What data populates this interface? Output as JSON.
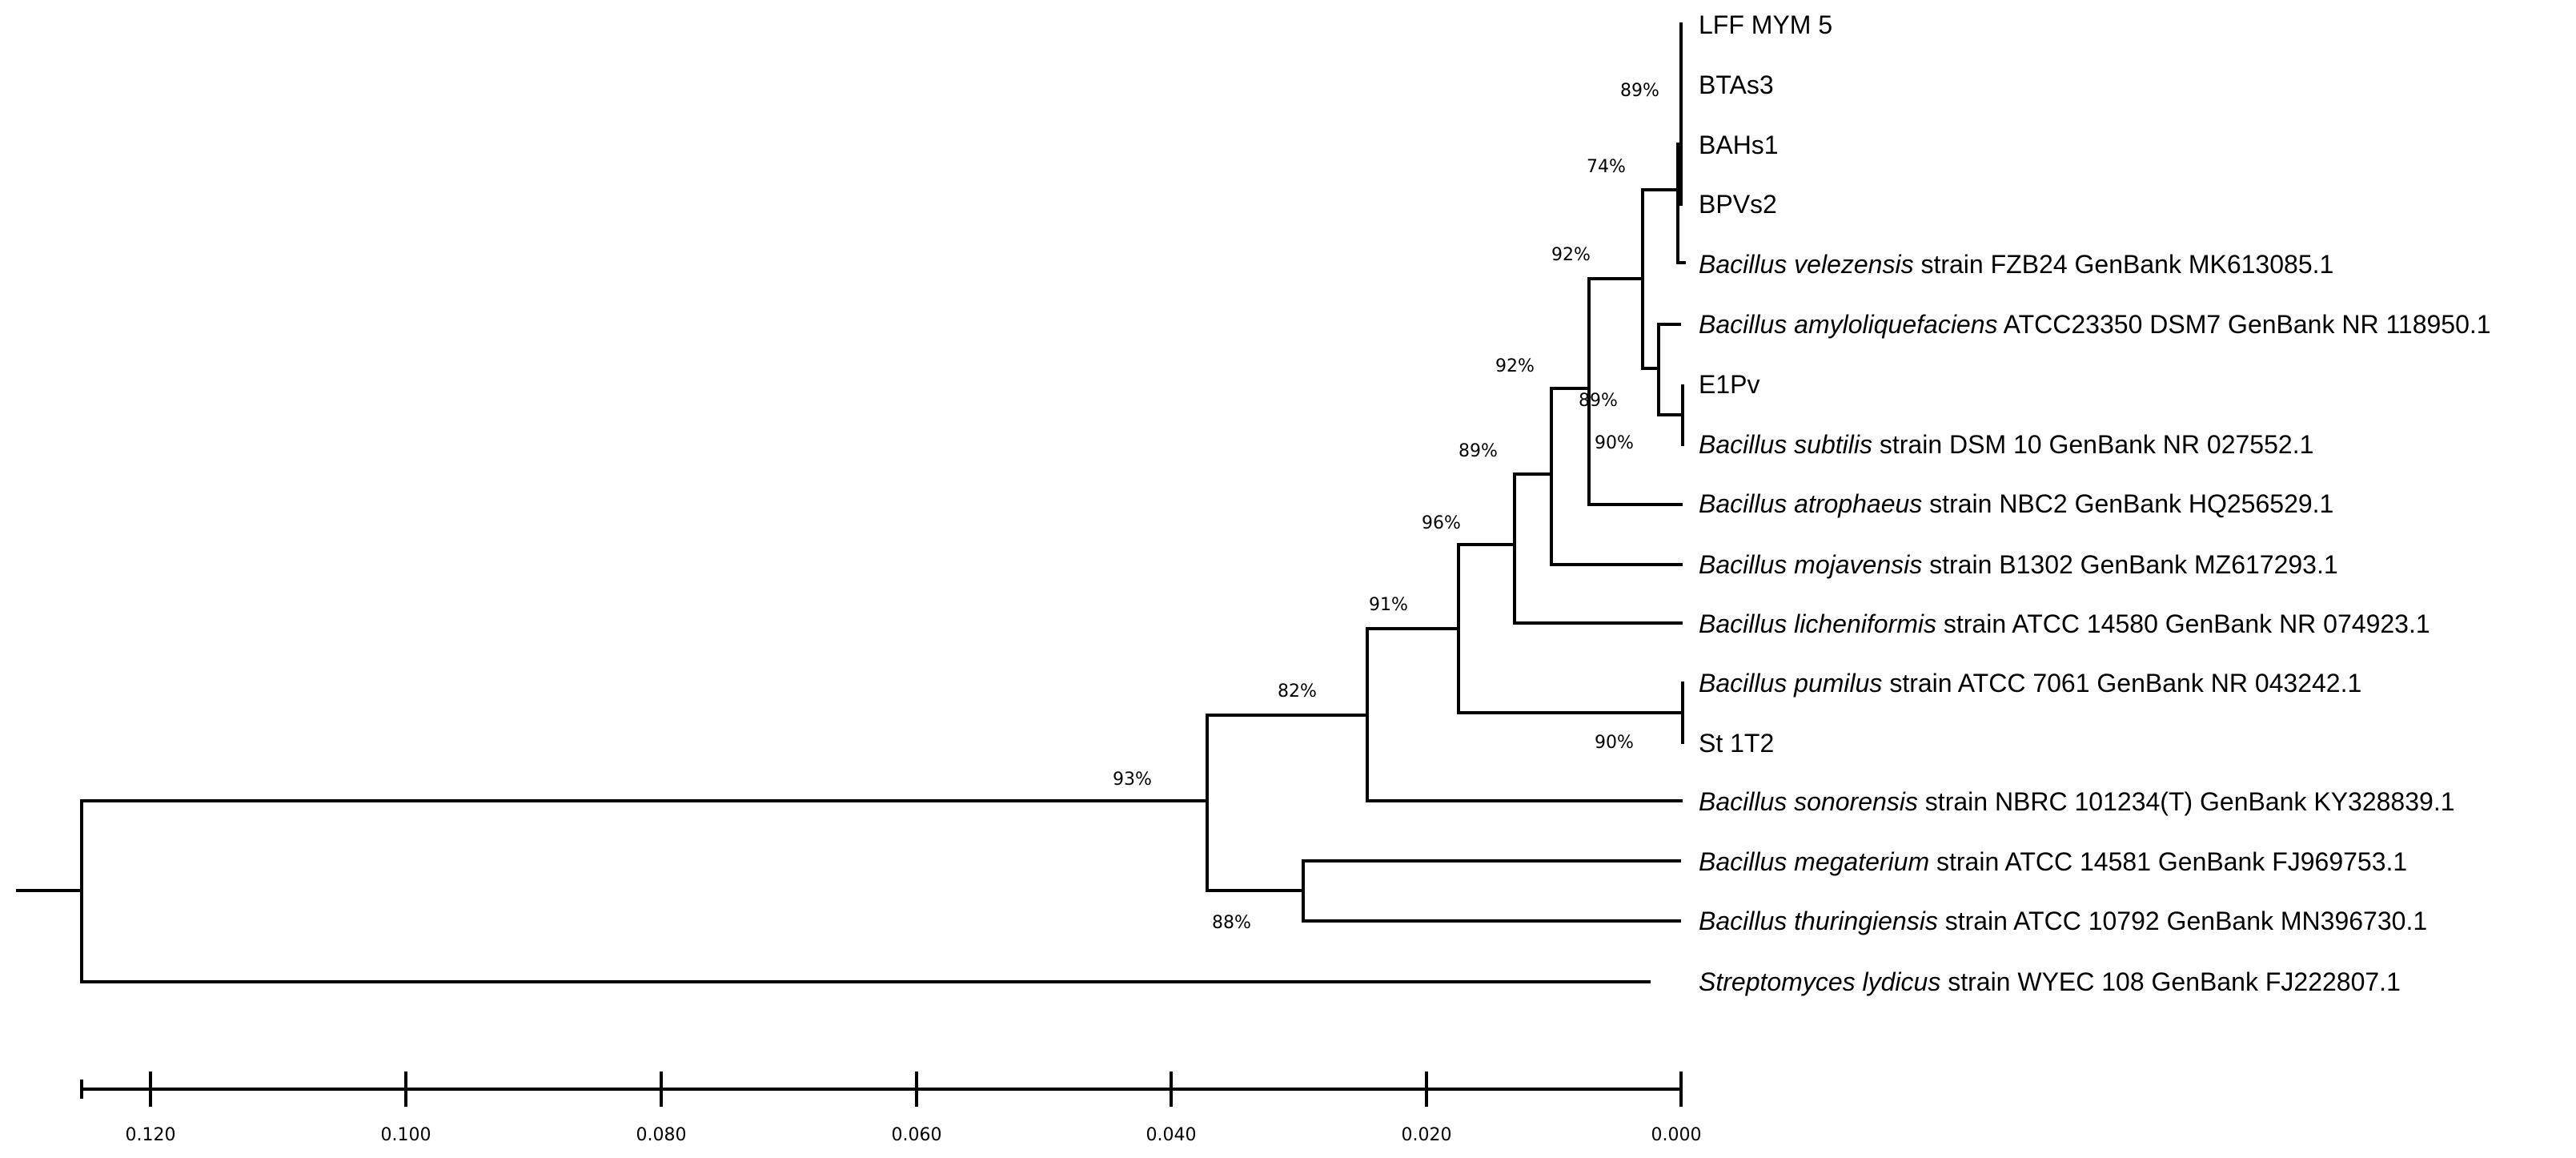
{
  "tree": {
    "leaves": [
      {
        "genus": "",
        "label": "LFF MYM 5"
      },
      {
        "genus": "",
        "label": "BTAs3"
      },
      {
        "genus": "",
        "label": "BAHs1"
      },
      {
        "genus": "",
        "label": "BPVs2"
      },
      {
        "genus": "Bacillus velezensis",
        "label": " strain FZB24 GenBank MK613085.1"
      },
      {
        "genus": "Bacillus amyloliquefaciens",
        "label": " ATCC23350 DSM7 GenBank NR 118950.1"
      },
      {
        "genus": "",
        "label": "E1Pv"
      },
      {
        "genus": "Bacillus subtilis",
        "label": " strain DSM 10 GenBank NR 027552.1"
      },
      {
        "genus": "Bacillus atrophaeus",
        "label": " strain NBC2 GenBank HQ256529.1"
      },
      {
        "genus": "Bacillus mojavensis",
        "label": " strain B1302 GenBank MZ617293.1"
      },
      {
        "genus": "Bacillus licheniformis",
        "label": " strain ATCC 14580 GenBank NR 074923.1"
      },
      {
        "genus": "Bacillus pumilus",
        "label": " strain ATCC 7061 GenBank NR 043242.1"
      },
      {
        "genus": "",
        "label": "St 1T2"
      },
      {
        "genus": "Bacillus sonorensis",
        "label": " strain NBRC 101234(T) GenBank KY328839.1"
      },
      {
        "genus": "Bacillus megaterium",
        "label": " strain ATCC 14581 GenBank FJ969753.1"
      },
      {
        "genus": "Bacillus thuringiensis",
        "label": " strain ATCC 10792 GenBank MN396730.1"
      },
      {
        "genus": "Streptomyces lydicus",
        "label": " strain WYEC 108 GenBank FJ222807.1"
      }
    ],
    "support_values": [
      "89%",
      "74%",
      "92%",
      "92%",
      "89%",
      "90%",
      "89%",
      "96%",
      "91%",
      "82%",
      "93%",
      "90%",
      "88%"
    ],
    "scale_ticks": [
      "0.120",
      "0.100",
      "0.080",
      "0.060",
      "0.040",
      "0.020",
      "0.000"
    ]
  }
}
